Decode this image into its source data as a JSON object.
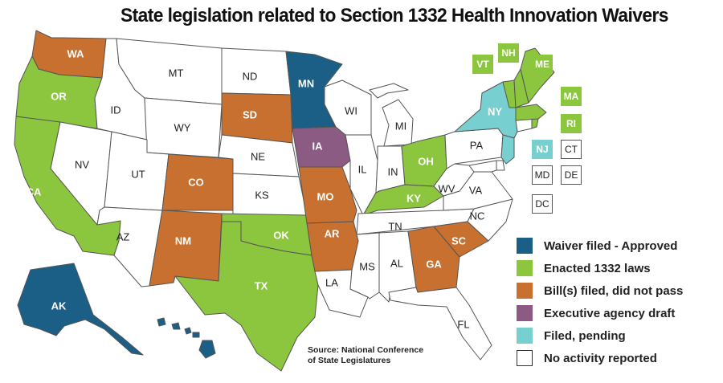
{
  "title": "State legislation related to Section 1332 Health Innovation Waivers",
  "source_line1": "Source: National Conference",
  "source_line2": "of State Legislatures",
  "colors": {
    "approved": "#1b5f86",
    "enacted": "#8cc63f",
    "bills": "#c8702f",
    "executive": "#8b5b83",
    "pending": "#78cfcf",
    "none": "#ffffff"
  },
  "legend": [
    {
      "label": "Waiver filed - Approved",
      "status": "approved"
    },
    {
      "label": "Enacted 1332 laws",
      "status": "enacted"
    },
    {
      "label": "Bill(s) filed, did not pass",
      "status": "bills"
    },
    {
      "label": "Executive agency draft",
      "status": "executive"
    },
    {
      "label": "Filed, pending",
      "status": "pending"
    },
    {
      "label": "No activity reported",
      "status": "none"
    }
  ],
  "states": {
    "WA": "bills",
    "OR": "enacted",
    "CA": "enacted",
    "NV": "none",
    "ID": "none",
    "MT": "none",
    "WY": "none",
    "UT": "none",
    "AZ": "none",
    "CO": "bills",
    "NM": "bills",
    "ND": "none",
    "SD": "bills",
    "NE": "none",
    "KS": "none",
    "OK": "enacted",
    "TX": "enacted",
    "MN": "approved",
    "IA": "executive",
    "MO": "bills",
    "AR": "bills",
    "LA": "none",
    "WI": "none",
    "IL": "none",
    "MI": "none",
    "IN": "none",
    "OH": "enacted",
    "KY": "enacted",
    "TN": "none",
    "MS": "none",
    "AL": "none",
    "GA": "bills",
    "FL": "none",
    "SC": "bills",
    "NC": "none",
    "VA": "none",
    "WV": "none",
    "PA": "none",
    "NY": "pending",
    "VT": "enacted",
    "NH": "enacted",
    "ME": "enacted",
    "MA": "enacted",
    "RI": "enacted",
    "CT": "none",
    "NJ": "pending",
    "DE": "none",
    "MD": "none",
    "DC": "none",
    "AK": "approved",
    "HI": "approved"
  },
  "boxes": [
    "VT",
    "NH",
    "ME",
    "MA",
    "RI",
    "NJ",
    "CT",
    "MD",
    "DE",
    "DC"
  ]
}
